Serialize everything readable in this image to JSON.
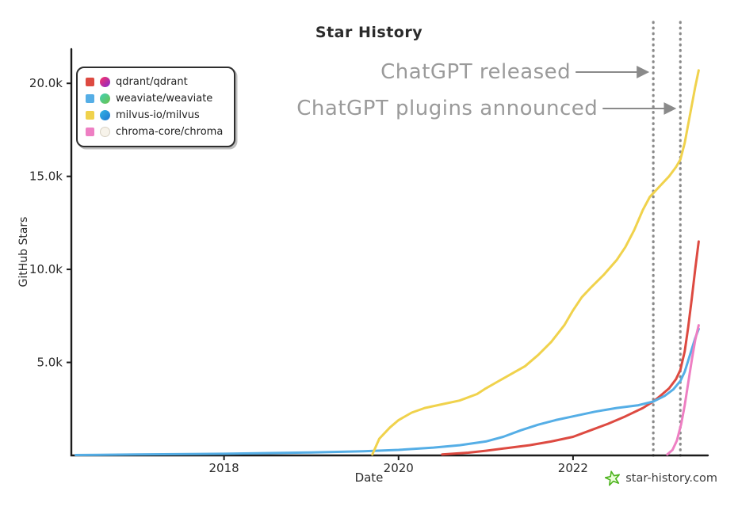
{
  "title": "Star History",
  "axes": {
    "x_label": "Date",
    "y_label": "GitHub Stars"
  },
  "annotations": [
    {
      "label": "ChatGPT released",
      "x": 2022.92
    },
    {
      "label": "ChatGPT plugins announced",
      "x": 2023.23
    }
  ],
  "watermark": {
    "label": "star-history.com",
    "star_color": "#4db31e"
  },
  "colors": {
    "axis": "#1b1b1b",
    "annotation_gray": "#8a8a8a",
    "qdrant_red": "#dd4a41",
    "weaviate_blue": "#55aee6",
    "milvus_yellow": "#f0d24c",
    "chroma_pink": "#ee7fc3"
  },
  "chart_data": {
    "type": "line",
    "title": "Star History",
    "xlabel": "Date",
    "ylabel": "GitHub Stars",
    "x_unit": "decimal_year",
    "y_unit": "thousands_of_stars",
    "xlim": [
      2016.25,
      2023.5
    ],
    "ylim": [
      0,
      21.5
    ],
    "grid": false,
    "legend_position": "top-left",
    "x_ticks": [
      {
        "value": 2018,
        "label": "2018"
      },
      {
        "value": 2020,
        "label": "2020"
      },
      {
        "value": 2022,
        "label": "2022"
      }
    ],
    "y_ticks": [
      {
        "value": 5,
        "label": "5.0k"
      },
      {
        "value": 10,
        "label": "10.0k"
      },
      {
        "value": 15,
        "label": "15.0k"
      },
      {
        "value": 20,
        "label": "20.0k"
      }
    ],
    "series": [
      {
        "name": "qdrant/qdrant",
        "color": "#dd4a41",
        "points": [
          [
            2020.5,
            0.05
          ],
          [
            2020.8,
            0.15
          ],
          [
            2021.0,
            0.25
          ],
          [
            2021.25,
            0.4
          ],
          [
            2021.5,
            0.55
          ],
          [
            2021.75,
            0.75
          ],
          [
            2022.0,
            1.0
          ],
          [
            2022.2,
            1.35
          ],
          [
            2022.4,
            1.7
          ],
          [
            2022.6,
            2.1
          ],
          [
            2022.8,
            2.55
          ],
          [
            2022.92,
            2.9
          ],
          [
            2023.0,
            3.2
          ],
          [
            2023.1,
            3.6
          ],
          [
            2023.18,
            4.1
          ],
          [
            2023.23,
            4.6
          ],
          [
            2023.28,
            5.6
          ],
          [
            2023.32,
            6.9
          ],
          [
            2023.36,
            8.4
          ],
          [
            2023.4,
            10.0
          ],
          [
            2023.44,
            11.5
          ]
        ]
      },
      {
        "name": "weaviate/weaviate",
        "color": "#55aee6",
        "points": [
          [
            2016.3,
            0.02
          ],
          [
            2017.0,
            0.05
          ],
          [
            2018.0,
            0.09
          ],
          [
            2019.0,
            0.16
          ],
          [
            2019.6,
            0.22
          ],
          [
            2020.0,
            0.3
          ],
          [
            2020.4,
            0.42
          ],
          [
            2020.7,
            0.55
          ],
          [
            2021.0,
            0.75
          ],
          [
            2021.2,
            1.0
          ],
          [
            2021.4,
            1.35
          ],
          [
            2021.6,
            1.65
          ],
          [
            2021.8,
            1.9
          ],
          [
            2022.0,
            2.1
          ],
          [
            2022.25,
            2.35
          ],
          [
            2022.5,
            2.55
          ],
          [
            2022.75,
            2.7
          ],
          [
            2022.92,
            2.9
          ],
          [
            2023.05,
            3.2
          ],
          [
            2023.15,
            3.55
          ],
          [
            2023.23,
            4.0
          ],
          [
            2023.28,
            4.5
          ],
          [
            2023.32,
            5.1
          ],
          [
            2023.36,
            5.7
          ],
          [
            2023.4,
            6.3
          ],
          [
            2023.44,
            6.8
          ]
        ]
      },
      {
        "name": "milvus-io/milvus",
        "color": "#f0d24c",
        "points": [
          [
            2019.7,
            0.05
          ],
          [
            2019.78,
            0.9
          ],
          [
            2019.9,
            1.5
          ],
          [
            2020.0,
            1.9
          ],
          [
            2020.15,
            2.3
          ],
          [
            2020.3,
            2.55
          ],
          [
            2020.5,
            2.75
          ],
          [
            2020.7,
            2.95
          ],
          [
            2020.9,
            3.3
          ],
          [
            2021.0,
            3.6
          ],
          [
            2021.15,
            4.0
          ],
          [
            2021.3,
            4.4
          ],
          [
            2021.45,
            4.8
          ],
          [
            2021.6,
            5.4
          ],
          [
            2021.75,
            6.1
          ],
          [
            2021.9,
            7.0
          ],
          [
            2022.0,
            7.8
          ],
          [
            2022.1,
            8.5
          ],
          [
            2022.2,
            9.0
          ],
          [
            2022.35,
            9.7
          ],
          [
            2022.5,
            10.5
          ],
          [
            2022.6,
            11.2
          ],
          [
            2022.7,
            12.1
          ],
          [
            2022.8,
            13.2
          ],
          [
            2022.88,
            13.9
          ],
          [
            2022.92,
            14.1
          ],
          [
            2023.0,
            14.5
          ],
          [
            2023.1,
            15.0
          ],
          [
            2023.18,
            15.5
          ],
          [
            2023.23,
            15.9
          ],
          [
            2023.28,
            16.8
          ],
          [
            2023.32,
            17.8
          ],
          [
            2023.36,
            18.8
          ],
          [
            2023.4,
            19.8
          ],
          [
            2023.44,
            20.7
          ]
        ]
      },
      {
        "name": "chroma-core/chroma",
        "color": "#ee7fc3",
        "points": [
          [
            2023.08,
            0.05
          ],
          [
            2023.14,
            0.3
          ],
          [
            2023.19,
            0.8
          ],
          [
            2023.24,
            1.7
          ],
          [
            2023.28,
            2.7
          ],
          [
            2023.32,
            3.9
          ],
          [
            2023.36,
            5.1
          ],
          [
            2023.4,
            6.2
          ],
          [
            2023.44,
            7.0
          ]
        ]
      }
    ]
  }
}
